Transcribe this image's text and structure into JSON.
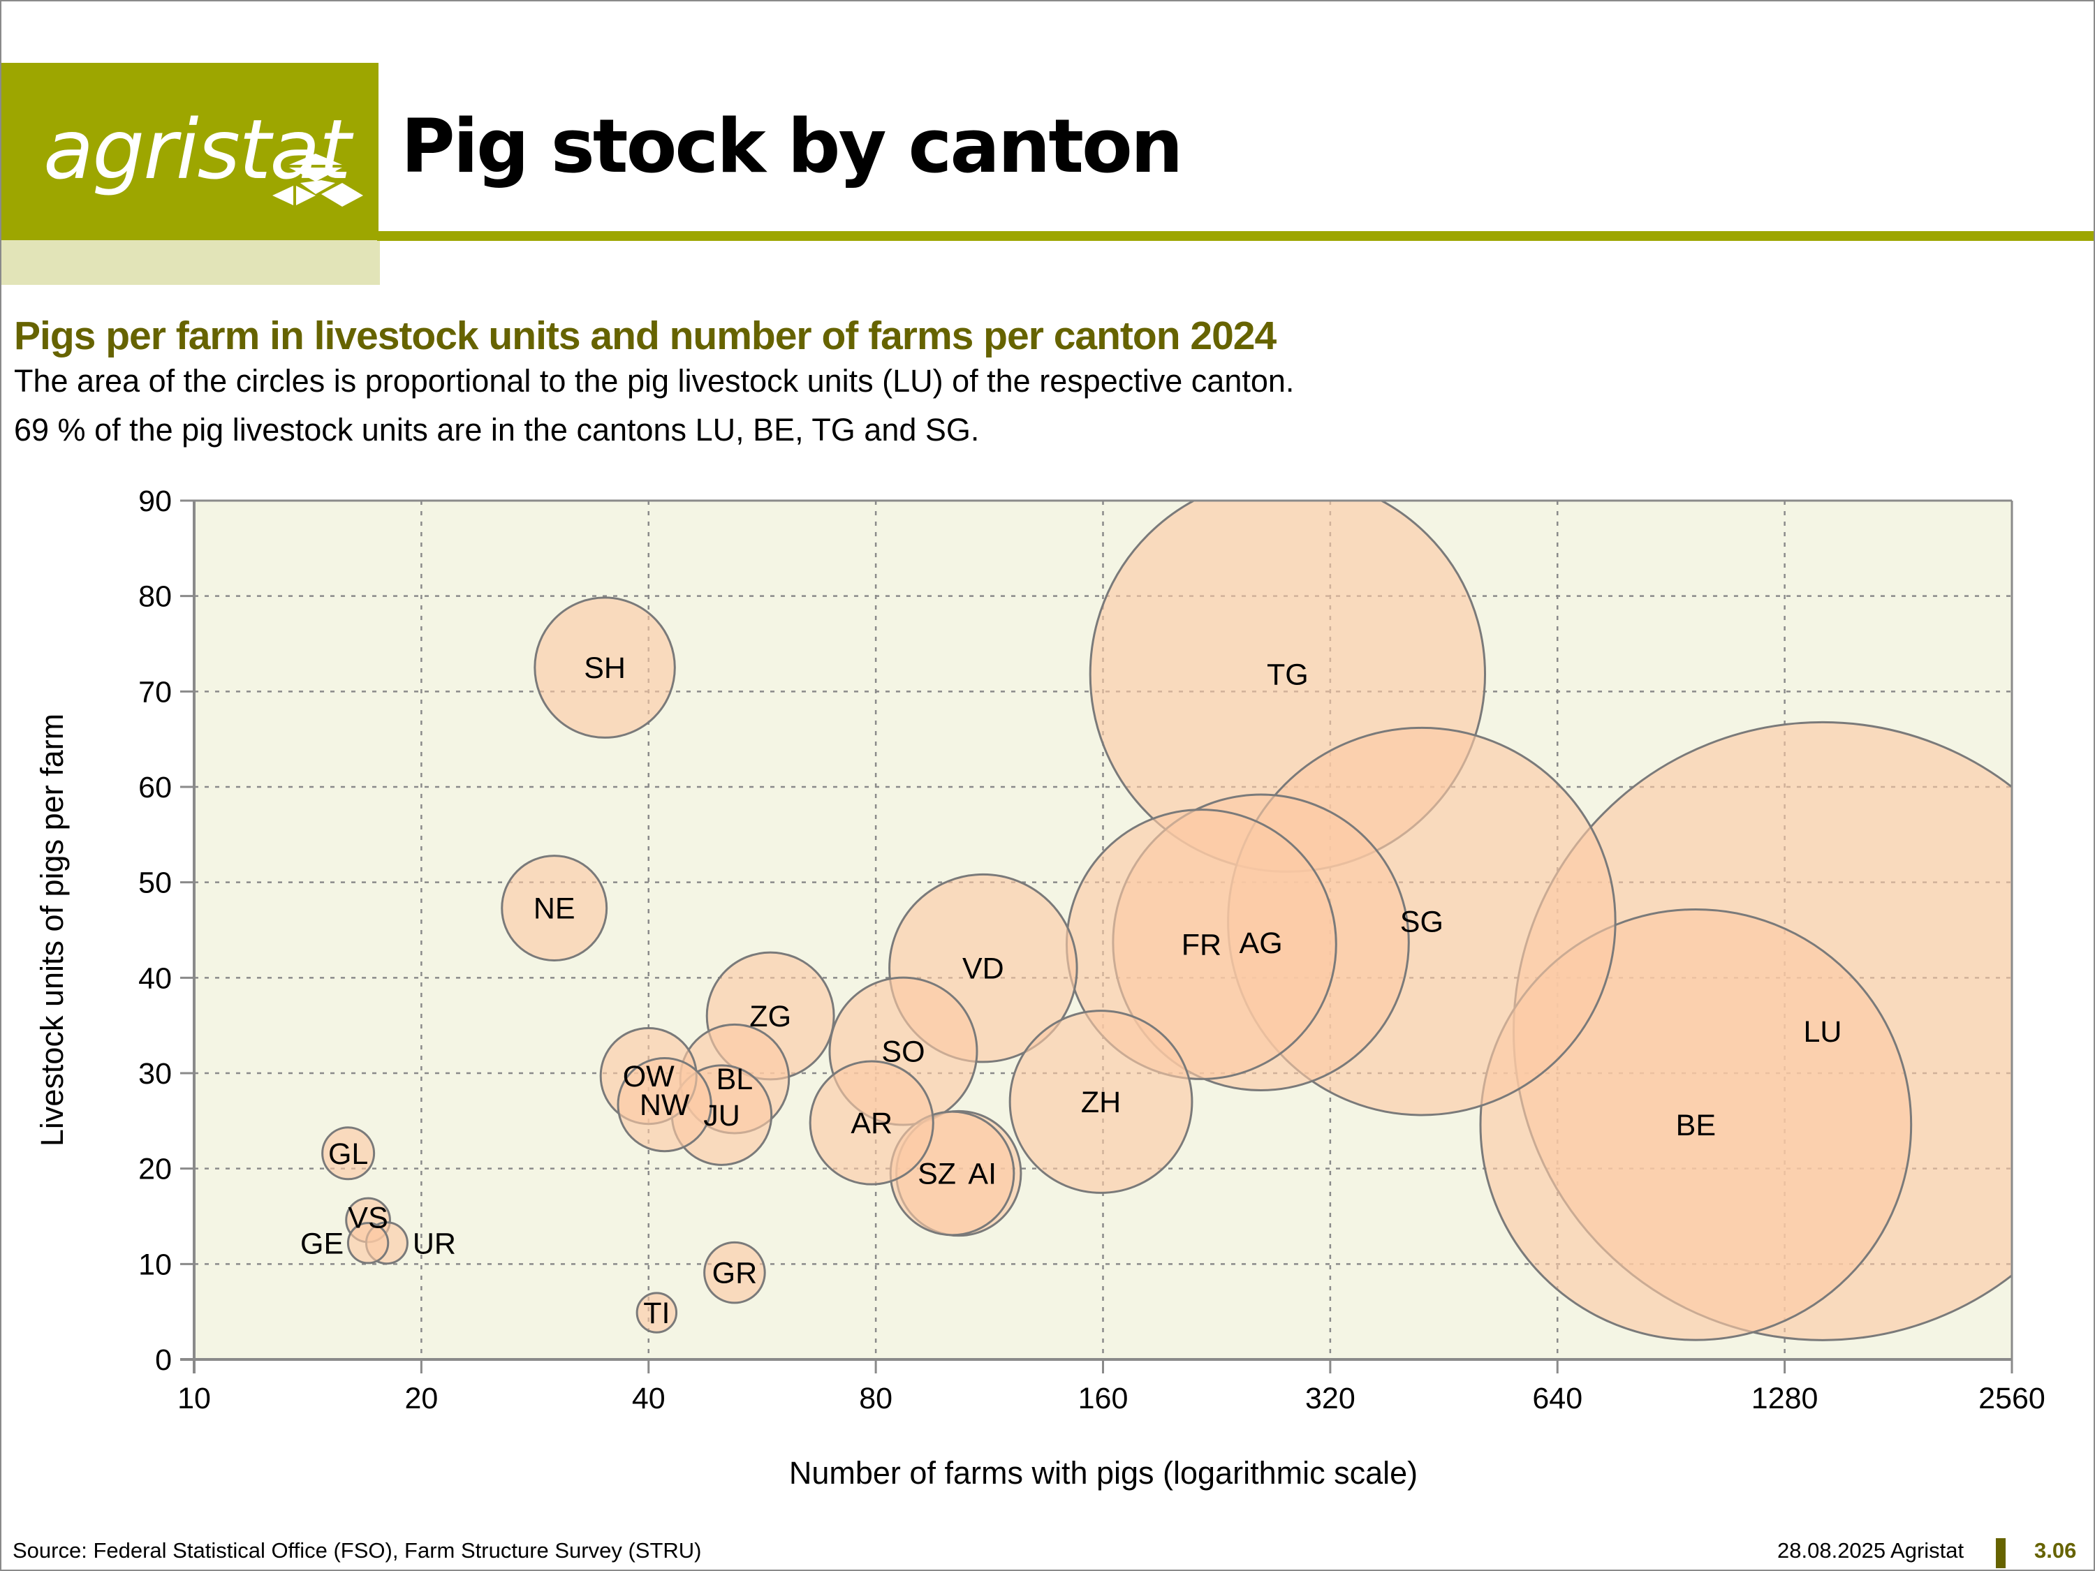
{
  "header": {
    "logo_text": "agristat",
    "title": "Pig stock by canton"
  },
  "subtitle": "Pigs per farm in livestock units and number of farms per canton 2024",
  "description": [
    "The area of the circles is proportional to the pig livestock units (LU) of the respective canton.",
    "69 % of the pig livestock units are in the cantons LU, BE, TG and SG."
  ],
  "footer": {
    "source": "Source: Federal Statistical Office (FSO), Farm Structure Survey (STRU)",
    "date": "28.08.2025 Agristat",
    "page": "3.06"
  },
  "colors": {
    "brand": "#9da600",
    "brand_light": "#e2e4b8",
    "brand_dark": "#666300",
    "plot_bg": "#f4f5e4",
    "bubble_fill": "#fbc9a4",
    "bubble_stroke": "#7a7a7a"
  },
  "chart_data": {
    "type": "scatter",
    "subtype": "bubble",
    "xlabel": "Number of farms with pigs (logarithmic scale)",
    "ylabel": "Livestock units of pigs per farm",
    "xscale": "log2",
    "xlim": [
      10,
      2560
    ],
    "ylim": [
      0,
      90
    ],
    "xticks": [
      "10",
      "20",
      "40",
      "80",
      "160",
      "320",
      "640",
      "1280",
      "2560"
    ],
    "xtick_values": [
      10,
      20,
      40,
      80,
      160,
      320,
      640,
      1280,
      2560
    ],
    "yticks": [
      "0",
      "10",
      "20",
      "30",
      "40",
      "50",
      "60",
      "70",
      "80",
      "90"
    ],
    "ytick_values": [
      0,
      10,
      20,
      30,
      40,
      50,
      60,
      70,
      80,
      90
    ],
    "grid": true,
    "size_meaning": "pig livestock units (LU) of the canton",
    "points": [
      {
        "label": "LU",
        "farms": 1437,
        "lu_per_farm": 34.4
      },
      {
        "label": "BE",
        "farms": 976,
        "lu_per_farm": 24.6
      },
      {
        "label": "TG",
        "farms": 281,
        "lu_per_farm": 71.8
      },
      {
        "label": "SG",
        "farms": 423,
        "lu_per_farm": 45.9
      },
      {
        "label": "AG",
        "farms": 259,
        "lu_per_farm": 43.7
      },
      {
        "label": "FR",
        "farms": 216,
        "lu_per_farm": 43.5
      },
      {
        "label": "ZH",
        "farms": 159,
        "lu_per_farm": 27.0
      },
      {
        "label": "VD",
        "farms": 111,
        "lu_per_farm": 41.0
      },
      {
        "label": "AI",
        "farms": 103,
        "lu_per_farm": 19.5
      },
      {
        "label": "SZ",
        "farms": 101,
        "lu_per_farm": 19.5
      },
      {
        "label": "SO",
        "farms": 87,
        "lu_per_farm": 32.3
      },
      {
        "label": "AR",
        "farms": 79,
        "lu_per_farm": 24.8
      },
      {
        "label": "ZG",
        "farms": 58,
        "lu_per_farm": 36.0
      },
      {
        "label": "BL",
        "farms": 52,
        "lu_per_farm": 29.4
      },
      {
        "label": "JU",
        "farms": 50,
        "lu_per_farm": 25.6
      },
      {
        "label": "NW",
        "farms": 42,
        "lu_per_farm": 26.7
      },
      {
        "label": "OW",
        "farms": 40,
        "lu_per_farm": 29.7
      },
      {
        "label": "SH",
        "farms": 35,
        "lu_per_farm": 72.5
      },
      {
        "label": "NE",
        "farms": 30,
        "lu_per_farm": 47.3
      },
      {
        "label": "GR",
        "farms": 52,
        "lu_per_farm": 9.1
      },
      {
        "label": "TI",
        "farms": 41,
        "lu_per_farm": 4.9
      },
      {
        "label": "GL",
        "farms": 16,
        "lu_per_farm": 21.6
      },
      {
        "label": "VS",
        "farms": 17,
        "lu_per_farm": 14.6
      },
      {
        "label": "GE",
        "farms": 17,
        "lu_per_farm": 12.2
      },
      {
        "label": "UR",
        "farms": 18,
        "lu_per_farm": 12.2
      }
    ]
  }
}
